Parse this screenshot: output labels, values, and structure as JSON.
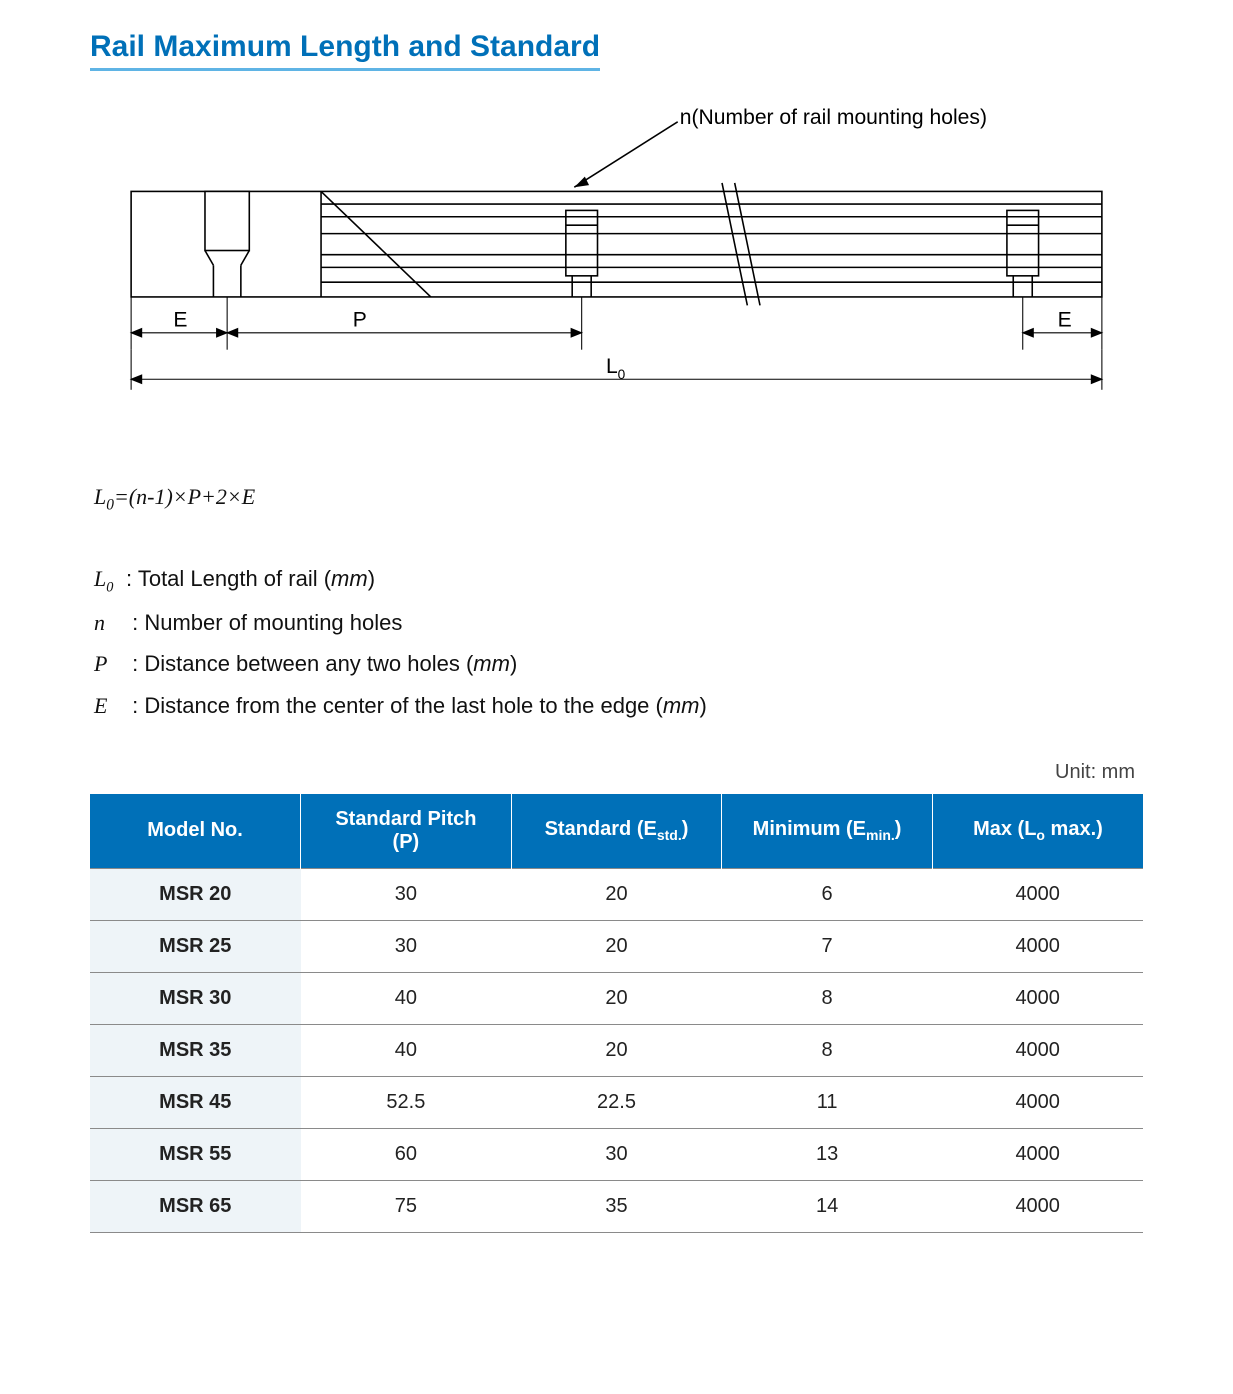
{
  "title": "Rail Maximum Length and Standard",
  "diagram": {
    "callout": "n(Number of rail mounting holes)",
    "dim_E_left": "E",
    "dim_P": "P",
    "dim_E_right": "E",
    "dim_L0": "L",
    "dim_L0_sub": "0",
    "stroke": "#000000",
    "fill_section": "#ffffff",
    "hatch": "#000000",
    "label_fontsize": 22
  },
  "formula": {
    "lhs_L": "L",
    "lhs_sub": "0",
    "rhs": "=(n-1)×P+2×E"
  },
  "definitions": [
    {
      "sym": "L",
      "sub": "0",
      "text": ": Total Length of rail (mm)",
      "italic_unit": true
    },
    {
      "sym": "n",
      "sub": "",
      "text": "  : Number of mounting holes",
      "italic_unit": false
    },
    {
      "sym": "P",
      "sub": "",
      "text": " : Distance between any two holes (mm)",
      "italic_unit": true
    },
    {
      "sym": "E",
      "sub": "",
      "text": " : Distance from the center of the last hole to the edge (mm)",
      "italic_unit": true
    }
  ],
  "unit_label": "Unit: mm",
  "table": {
    "header_bg": "#0070b8",
    "header_color": "#ffffff",
    "model_bg": "#eef4f8",
    "border_color": "#8a8a8a",
    "columns": [
      {
        "html": "Model No."
      },
      {
        "html": "Standard Pitch<br>(P)"
      },
      {
        "html": "Standard (E<span class=\"sub\">std.</span>)"
      },
      {
        "html": "Minimum (E<span class=\"sub\">min.</span>)"
      },
      {
        "html": "Max (L<span class=\"sub\">o</span> max.)"
      }
    ],
    "rows": [
      [
        "MSR 20",
        "30",
        "20",
        "6",
        "4000"
      ],
      [
        "MSR 25",
        "30",
        "20",
        "7",
        "4000"
      ],
      [
        "MSR 30",
        "40",
        "20",
        "8",
        "4000"
      ],
      [
        "MSR 35",
        "40",
        "20",
        "8",
        "4000"
      ],
      [
        "MSR 45",
        "52.5",
        "22.5",
        "11",
        "4000"
      ],
      [
        "MSR 55",
        "60",
        "30",
        "13",
        "4000"
      ],
      [
        "MSR 65",
        "75",
        "35",
        "14",
        "4000"
      ]
    ]
  }
}
